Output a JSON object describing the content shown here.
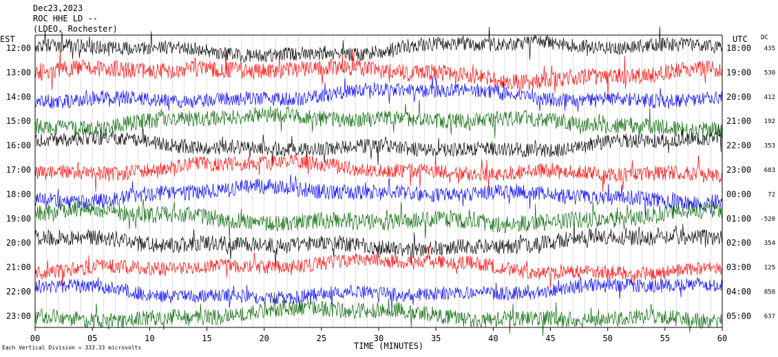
{
  "header": {
    "date": "Dec23,2023",
    "station": "ROC HHE LD --",
    "network": "(LDEO, Rochester)"
  },
  "chart_data": {
    "type": "line",
    "left_axis_label": "EST",
    "right_axis_label": "UTC",
    "dc_header": "DC",
    "xlabel": "TIME (MINUTES)",
    "x_ticks": [
      "00",
      "05",
      "10",
      "15",
      "20",
      "25",
      "30",
      "35",
      "40",
      "45",
      "50",
      "55",
      "60"
    ],
    "xlim": [
      0,
      60
    ],
    "trace_colors": [
      "#000000",
      "#ff0000",
      "#0000ff",
      "#006400"
    ],
    "rows": [
      {
        "est": "12:00",
        "utc": "18:00",
        "dc": "435",
        "color": "#000000"
      },
      {
        "est": "13:00",
        "utc": "19:00",
        "dc": "530",
        "color": "#ff0000"
      },
      {
        "est": "14:00",
        "utc": "20:00",
        "dc": "412",
        "color": "#0000ff"
      },
      {
        "est": "15:00",
        "utc": "21:00",
        "dc": "192",
        "color": "#006400"
      },
      {
        "est": "16:00",
        "utc": "22:00",
        "dc": "353",
        "color": "#000000"
      },
      {
        "est": "17:00",
        "utc": "23:00",
        "dc": "683",
        "color": "#ff0000"
      },
      {
        "est": "18:00",
        "utc": "00:00",
        "dc": "72",
        "color": "#0000ff"
      },
      {
        "est": "19:00",
        "utc": "01:00",
        "dc": "-520",
        "color": "#006400"
      },
      {
        "est": "20:00",
        "utc": "02:00",
        "dc": "354",
        "color": "#000000"
      },
      {
        "est": "21:00",
        "utc": "03:00",
        "dc": "125",
        "color": "#ff0000"
      },
      {
        "est": "22:00",
        "utc": "04:00",
        "dc": "850",
        "color": "#0000ff"
      },
      {
        "est": "23:00",
        "utc": "05:00",
        "dc": "637",
        "color": "#006400"
      }
    ],
    "annotations": [
      {
        "text": "Each Vertical Division = 333.33 microvolts"
      }
    ],
    "grid": "vertical lines each minute",
    "legend": "none"
  }
}
